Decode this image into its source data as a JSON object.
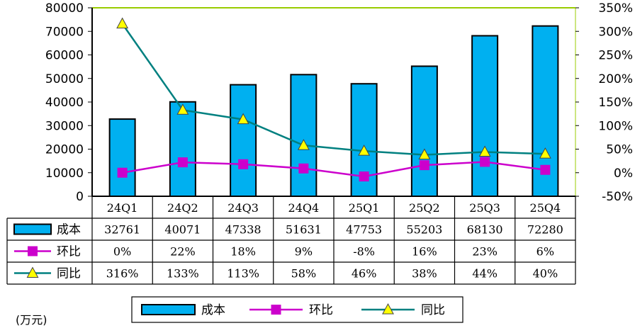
{
  "chart_data": {
    "type": "bar",
    "unit_label": "(万元)",
    "categories": [
      "24Q1",
      "24Q2",
      "24Q3",
      "24Q4",
      "25Q1",
      "25Q2",
      "25Q3",
      "25Q4"
    ],
    "series": [
      {
        "name": "成本",
        "type": "bar",
        "axis": "left",
        "color": "#00B0F0",
        "values": [
          32761,
          40071,
          47338,
          51631,
          47753,
          55203,
          68130,
          72280
        ],
        "labels": [
          "32761",
          "40071",
          "47338",
          "51631",
          "47753",
          "55203",
          "68130",
          "72280"
        ]
      },
      {
        "name": "环比",
        "type": "line",
        "axis": "right",
        "color": "#CC00CC",
        "marker": "square",
        "values": [
          0,
          22,
          18,
          9,
          -8,
          16,
          23,
          6
        ],
        "labels": [
          "0%",
          "22%",
          "18%",
          "9%",
          "-8%",
          "16%",
          "23%",
          "6%"
        ]
      },
      {
        "name": "同比",
        "type": "line",
        "axis": "right",
        "color": "#008080",
        "marker": "triangle",
        "marker_color": "#FFFF00",
        "values": [
          316,
          133,
          113,
          58,
          46,
          38,
          44,
          40
        ],
        "labels": [
          "316%",
          "133%",
          "113%",
          "58%",
          "46%",
          "38%",
          "44%",
          "40%"
        ]
      }
    ],
    "left_axis": {
      "min": 0,
      "max": 80000,
      "ticks": [
        "0",
        "10000",
        "20000",
        "30000",
        "40000",
        "50000",
        "60000",
        "70000",
        "80000"
      ]
    },
    "right_axis": {
      "min": -50,
      "max": 350,
      "ticks": [
        "-50%",
        "0%",
        "50%",
        "100%",
        "150%",
        "200%",
        "250%",
        "300%",
        "350%"
      ]
    },
    "grid": false,
    "plot_top_border_color": "#99CC00",
    "legend_position": "bottom",
    "data_table": true
  }
}
